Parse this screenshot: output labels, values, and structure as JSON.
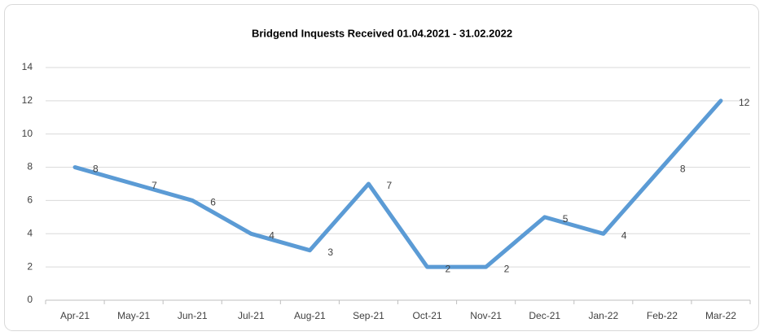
{
  "chart_data": {
    "type": "line",
    "title": "Bridgend Inquests Received 01.04.2021 - 31.02.2022",
    "categories": [
      "Apr-21",
      "May-21",
      "Jun-21",
      "Jul-21",
      "Aug-21",
      "Sep-21",
      "Oct-21",
      "Nov-21",
      "Dec-21",
      "Jan-22",
      "Feb-22",
      "Mar-22"
    ],
    "series": [
      {
        "name": "Inquests",
        "color": "#5b9bd5",
        "values": [
          8,
          7,
          6,
          4,
          3,
          7,
          2,
          2,
          5,
          4,
          8,
          12
        ]
      }
    ],
    "ylim": [
      0,
      14
    ],
    "yticks": [
      0,
      2,
      4,
      6,
      8,
      10,
      12,
      14
    ],
    "grid": true,
    "data_labels": true
  }
}
